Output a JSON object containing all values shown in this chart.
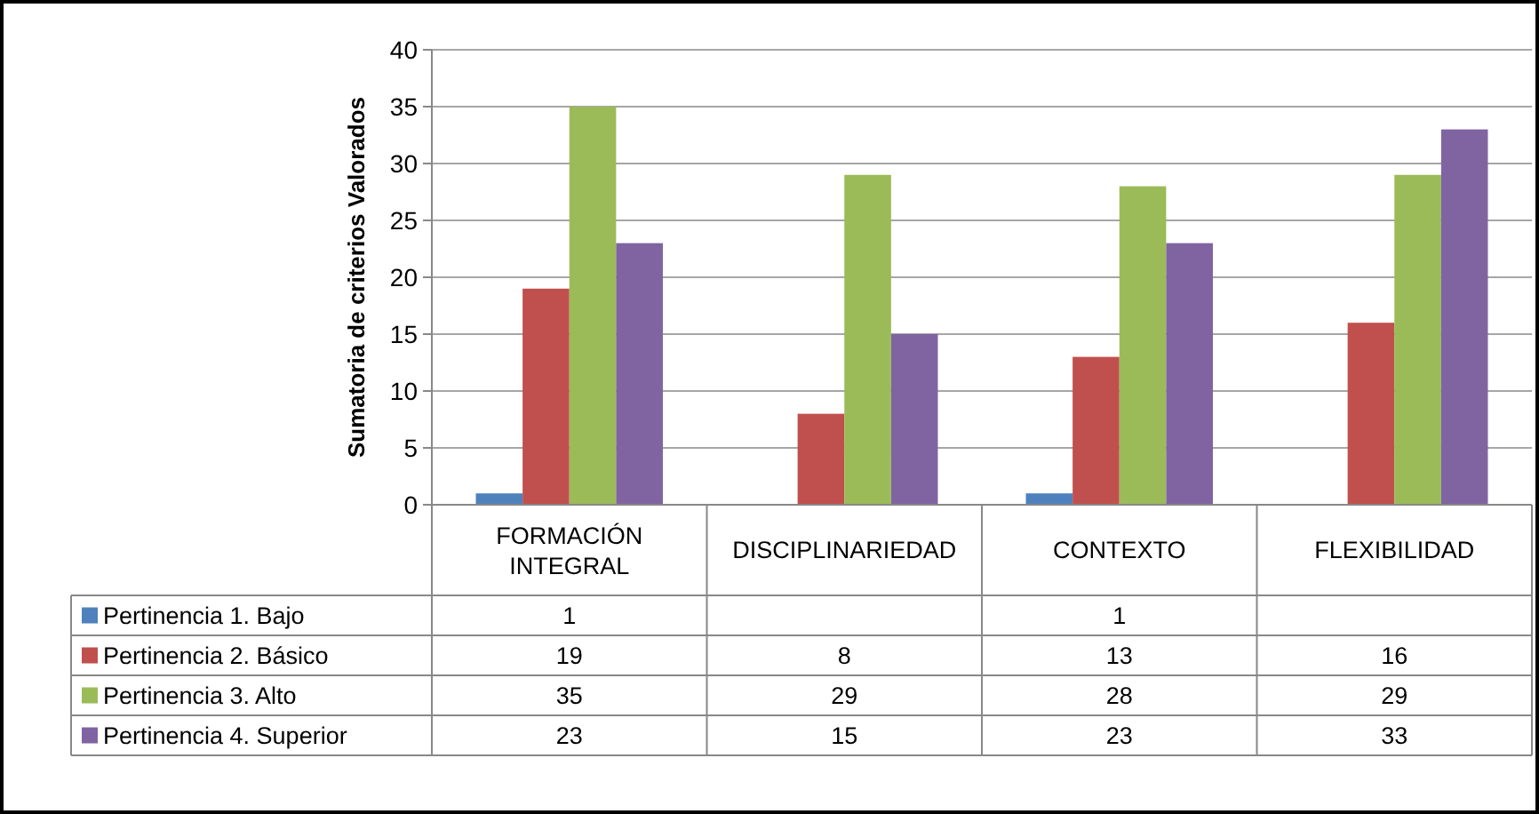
{
  "chart_data": {
    "type": "bar",
    "ylabel": "Sumatoria  de criterios Valorados",
    "categories": [
      "FORMACIÓN INTEGRAL",
      "DISCIPLINARIEDAD",
      "CONTEXTO",
      "FLEXIBILIDAD"
    ],
    "series": [
      {
        "name": "Pertinencia 1. Bajo",
        "color": "#4f81bd",
        "values": [
          1,
          null,
          1,
          null
        ]
      },
      {
        "name": "Pertinencia 2. Básico",
        "color": "#c0504d",
        "values": [
          19,
          8,
          13,
          16
        ]
      },
      {
        "name": "Pertinencia 3. Alto",
        "color": "#9bbb59",
        "values": [
          35,
          29,
          28,
          29
        ]
      },
      {
        "name": "Pertinencia 4. Superior",
        "color": "#8064a2",
        "values": [
          23,
          15,
          23,
          33
        ]
      }
    ],
    "ylim": [
      0,
      40
    ],
    "yticks": [
      0,
      5,
      10,
      15,
      20,
      25,
      30,
      35,
      40
    ],
    "grid": "y",
    "legend": "bottom left",
    "data_labels": true
  }
}
